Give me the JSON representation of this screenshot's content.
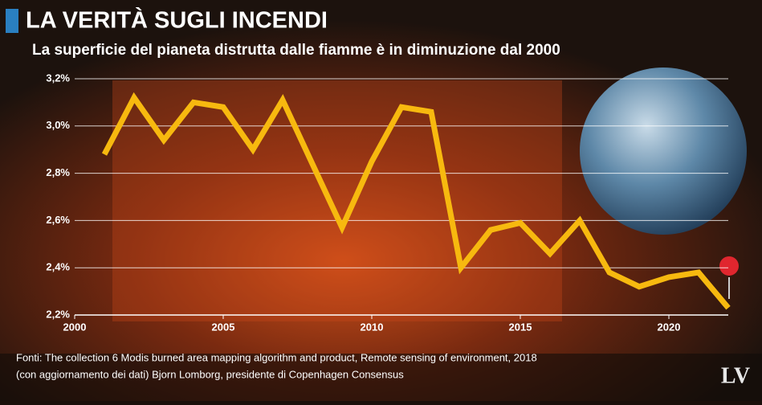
{
  "chart_data": {
    "type": "line",
    "title": "LA VERITÀ SUGLI INCENDI",
    "subtitle": "La superficie del pianeta distrutta dalle fiamme è in diminuzione dal 2000",
    "source": [
      "Fonti: The collection 6 Modis burned area mapping algorithm and product, Remote sensing of environment, 2018",
      "(con aggiornamento dei dati) Bjorn  Lomborg, presidente di Copenhagen Consensus"
    ],
    "logo": "LV",
    "x": [
      2001,
      2002,
      2003,
      2004,
      2005,
      2006,
      2007,
      2008,
      2009,
      2010,
      2011,
      2012,
      2013,
      2014,
      2015,
      2016,
      2017,
      2018,
      2019,
      2020,
      2021,
      2022
    ],
    "series": [
      {
        "color": "#f7b90f",
        "values": [
          2.88,
          3.12,
          2.94,
          3.1,
          3.08,
          2.9,
          3.11,
          2.84,
          2.57,
          2.85,
          3.08,
          3.06,
          2.4,
          2.56,
          2.59,
          2.46,
          2.6,
          2.38,
          2.32,
          2.36,
          2.38,
          2.23
        ]
      }
    ],
    "xlim": [
      2000,
      2022
    ],
    "xticks": [
      2000,
      2005,
      2010,
      2015,
      2020
    ],
    "ylim": [
      2.2,
      3.2
    ],
    "yticks": [
      {
        "value": 2.2,
        "label": "2,2%"
      },
      {
        "value": 2.4,
        "label": "2,4%"
      },
      {
        "value": 2.6,
        "label": "2,6%"
      },
      {
        "value": 2.8,
        "label": "2,8%"
      },
      {
        "value": 3.0,
        "label": "3,0%"
      },
      {
        "value": 3.2,
        "label": "3,2%"
      }
    ],
    "grid": true
  }
}
